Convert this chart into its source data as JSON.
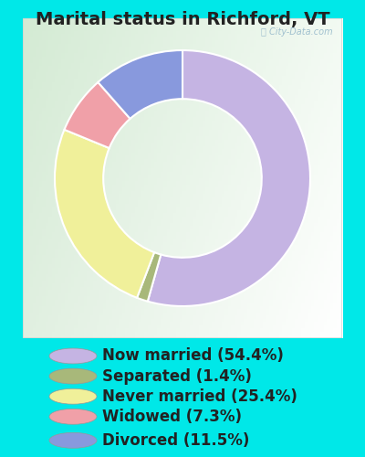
{
  "title": "Marital status in Richford, VT",
  "slices": [
    54.4,
    1.4,
    25.4,
    7.3,
    11.5
  ],
  "labels": [
    "Now married (54.4%)",
    "Separated (1.4%)",
    "Never married (25.4%)",
    "Widowed (7.3%)",
    "Divorced (11.5%)"
  ],
  "colors": [
    "#c5b4e3",
    "#a8b87a",
    "#f0f09a",
    "#f0a0a8",
    "#8899dd"
  ],
  "background_color": "#00e8e8",
  "title_fontsize": 14,
  "legend_fontsize": 12,
  "start_angle": 90,
  "title_color": "#222222",
  "legend_text_color": "#222222"
}
